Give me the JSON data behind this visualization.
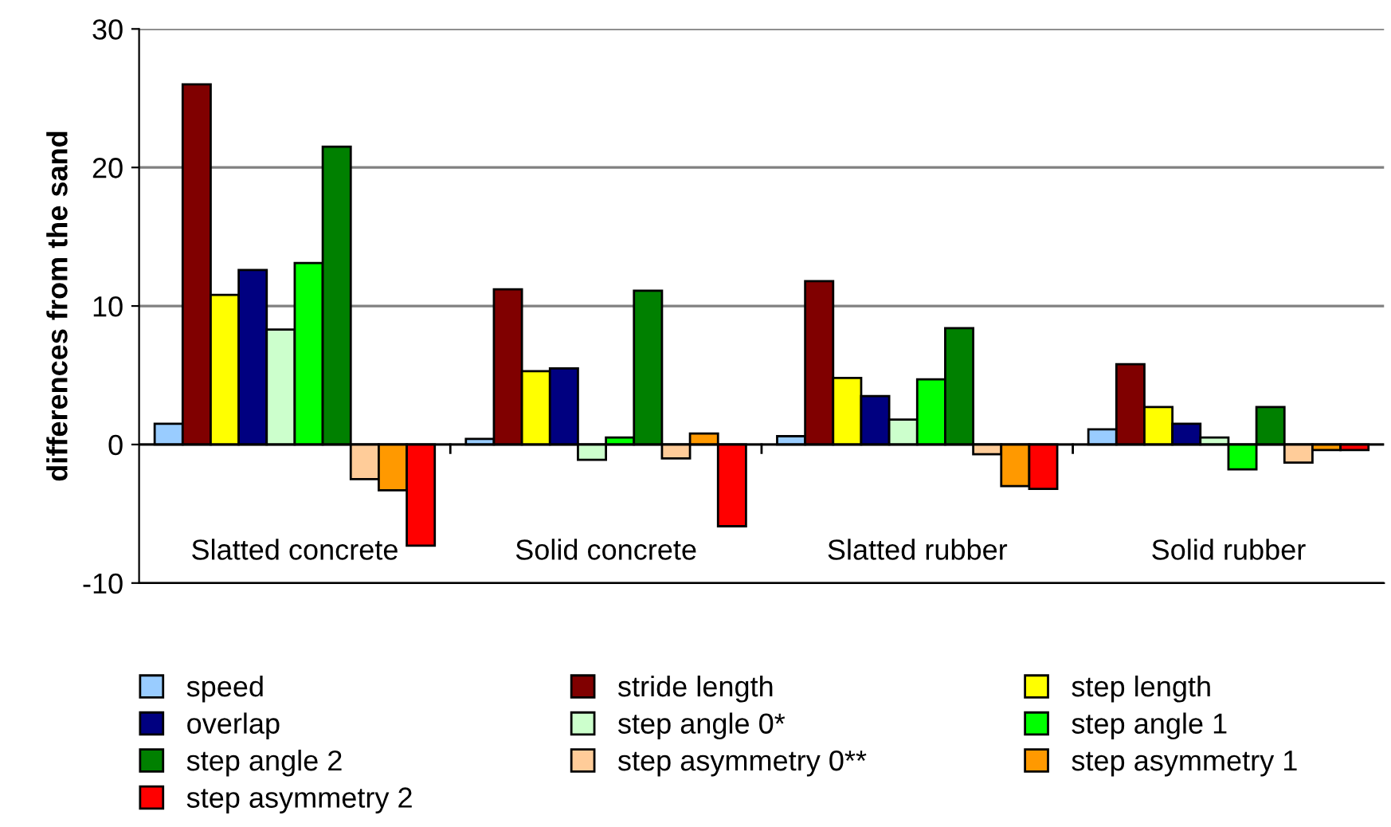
{
  "chart_data": {
    "type": "bar",
    "ylabel": "differences from the sand",
    "categories": [
      "Slatted concrete",
      "Solid concrete",
      "Slatted rubber",
      "Solid rubber"
    ],
    "series": [
      {
        "name": "speed",
        "color": "#99ccff",
        "values": [
          1.5,
          0.4,
          0.6,
          1.1
        ]
      },
      {
        "name": "stride length",
        "color": "#800000",
        "values": [
          26,
          11.2,
          11.8,
          5.8
        ]
      },
      {
        "name": "step length",
        "color": "#ffff00",
        "values": [
          10.8,
          5.3,
          4.8,
          2.7
        ]
      },
      {
        "name": "overlap",
        "color": "#000080",
        "values": [
          12.6,
          5.5,
          3.5,
          1.5
        ]
      },
      {
        "name": "step angle 0*",
        "color": "#ccffcc",
        "values": [
          8.3,
          -1.1,
          1.8,
          0.5
        ]
      },
      {
        "name": "step angle 1",
        "color": "#00ff00",
        "values": [
          13.1,
          0.5,
          4.7,
          -1.8
        ]
      },
      {
        "name": "step angle 2",
        "color": "#008000",
        "values": [
          21.5,
          11.1,
          8.4,
          2.7
        ]
      },
      {
        "name": "step asymmetry 0**",
        "color": "#ffcc99",
        "values": [
          -2.5,
          -1.0,
          -0.7,
          -1.3
        ]
      },
      {
        "name": "step asymmetry 1",
        "color": "#ff9900",
        "values": [
          -3.3,
          0.8,
          -3.0,
          -0.4
        ]
      },
      {
        "name": "step asymmetry 2",
        "color": "#ff0000",
        "values": [
          -7.3,
          -5.9,
          -3.2,
          -0.4
        ]
      }
    ],
    "ylim": [
      -10,
      30
    ],
    "yticks": [
      -10,
      0,
      10,
      20,
      30
    ],
    "grid": "y",
    "legend": "bottom"
  }
}
